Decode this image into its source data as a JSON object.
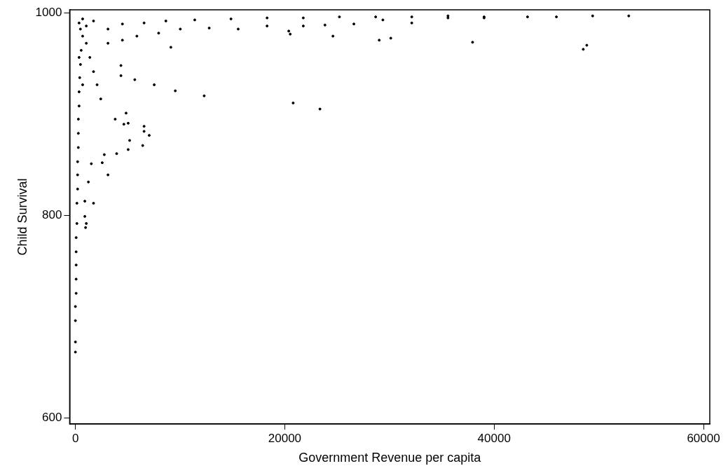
{
  "chart_data": {
    "type": "scatter",
    "xlabel": "Government Revenue per capita",
    "ylabel": "Child Survival",
    "xlim": [
      -550,
      60600
    ],
    "ylim": [
      594,
      1003
    ],
    "xticks": [
      0,
      20000,
      40000,
      60000
    ],
    "yticks": [
      600,
      800,
      1000
    ],
    "grid": false,
    "legend": false,
    "marker": "circle",
    "series": [
      {
        "color": "#000000",
        "x": [
          0,
          0,
          0,
          0,
          70,
          70,
          70,
          70,
          70,
          140,
          140,
          210,
          210,
          210,
          280,
          280,
          280,
          350,
          350,
          410,
          480,
          550,
          690,
          1040,
          1730,
          900,
          970,
          900,
          1240,
          1520,
          2560,
          3940,
          5040,
          6430,
          6560,
          7050,
          4630,
          5040,
          4350,
          4350,
          5670,
          7530,
          9120,
          9540,
          12300,
          1040,
          1730,
          3110,
          2760,
          5180,
          6560,
          3800,
          4840,
          20520,
          24600,
          29020,
          30130,
          37940,
          48510,
          48850,
          20800,
          23360,
          3110,
          4490,
          6560,
          8640,
          11400,
          14860,
          18310,
          21770,
          25220,
          28680,
          32130,
          35590,
          39040,
          43190,
          45950,
          49410,
          52860,
          3110,
          4490,
          5870,
          7950,
          10020,
          12780,
          15550,
          18310,
          20380,
          21770,
          23840,
          26600,
          29370,
          32130,
          35590,
          39040,
          350,
          690,
          480,
          1040,
          1380,
          1730,
          2070,
          2420,
          350,
          690
        ],
        "values": [
          665,
          675,
          696,
          710,
          723,
          737,
          751,
          764,
          778,
          792,
          812,
          826,
          840,
          853,
          867,
          881,
          895,
          908,
          922,
          936,
          949,
          963,
          977,
          987,
          992,
          799,
          788,
          814,
          833,
          851,
          852,
          861,
          865,
          869,
          883,
          879,
          890,
          891,
          938,
          948,
          934,
          929,
          966,
          923,
          918,
          792,
          812,
          840,
          860,
          874,
          888,
          895,
          901,
          979,
          977,
          973,
          975,
          971,
          964,
          968,
          911,
          905,
          984,
          989,
          990,
          992,
          993,
          994,
          995,
          995,
          996,
          996,
          996,
          997,
          996,
          996,
          996,
          997,
          997,
          970,
          973,
          977,
          980,
          984,
          985,
          984,
          987,
          982,
          987,
          988,
          989,
          993,
          990,
          995,
          995,
          990,
          994,
          984,
          970,
          956,
          942,
          929,
          915,
          956,
          929
        ]
      }
    ]
  }
}
